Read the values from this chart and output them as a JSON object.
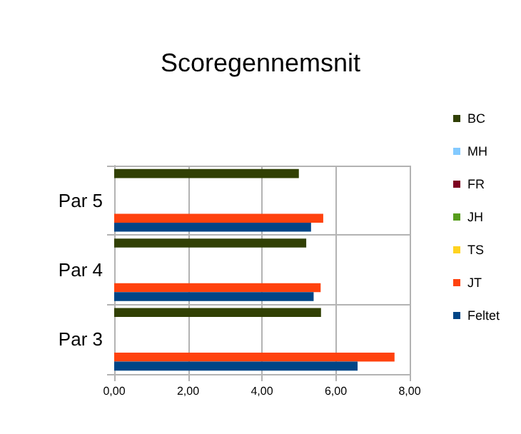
{
  "chart_data": {
    "type": "bar",
    "orientation": "horizontal",
    "title": "Scoregennemsnit",
    "categories": [
      "Par 5",
      "Par 4",
      "Par 3"
    ],
    "series": [
      {
        "name": "BC",
        "color": "#314004",
        "values": [
          5.0,
          5.2,
          5.6
        ]
      },
      {
        "name": "MH",
        "color": "#83caff",
        "values": [
          null,
          null,
          null
        ]
      },
      {
        "name": "FR",
        "color": "#7e0021",
        "values": [
          null,
          null,
          null
        ]
      },
      {
        "name": "JH",
        "color": "#579d1c",
        "values": [
          null,
          null,
          null
        ]
      },
      {
        "name": "TS",
        "color": "#ffd320",
        "values": [
          null,
          null,
          null
        ]
      },
      {
        "name": "JT",
        "color": "#ff420e",
        "values": [
          5.66,
          5.59,
          7.59
        ]
      },
      {
        "name": "Feltet",
        "color": "#004586",
        "values": [
          5.33,
          5.4,
          6.59
        ]
      }
    ],
    "xlim": [
      0,
      8
    ],
    "xticks": [
      {
        "value": 0,
        "label": "0,00"
      },
      {
        "value": 2,
        "label": "2,00"
      },
      {
        "value": 4,
        "label": "4,00"
      },
      {
        "value": 6,
        "label": "6,00"
      },
      {
        "value": 8,
        "label": "8,00"
      }
    ],
    "grid": true,
    "legend": "right"
  }
}
